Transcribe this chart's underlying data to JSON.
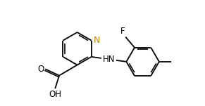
{
  "background": "#ffffff",
  "line_color": "#000000",
  "N_color": "#b8860b",
  "lw": 1.3,
  "fontsize_label": 8.5,
  "label_color_N": "#b8860b",
  "label_color_default": "#000000",
  "xlim": [
    -2.8,
    6.2
  ],
  "ylim": [
    -2.5,
    2.5
  ],
  "figsize": [
    2.91,
    1.51
  ],
  "dpi": 100
}
